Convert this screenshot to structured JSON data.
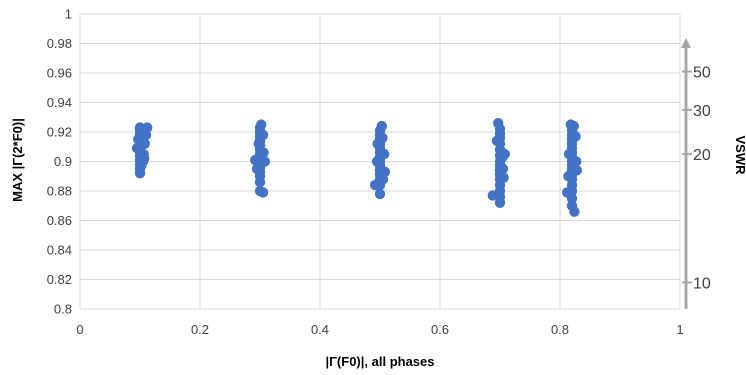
{
  "chart_data": {
    "type": "scatter",
    "title": "",
    "xlabel": "|Γ(F0)|, all phases",
    "ylabel": "MAX |Γ(2*F0)|",
    "y2label": "VSWR",
    "xlim": [
      0,
      1
    ],
    "ylim": [
      0.8,
      1
    ],
    "x_ticks": [
      "0",
      "0.2",
      "0.4",
      "0.6",
      "0.8",
      "1"
    ],
    "y_ticks": [
      "0.8",
      "0.82",
      "0.84",
      "0.86",
      "0.88",
      "0.9",
      "0.92",
      "0.94",
      "0.96",
      "0.98",
      "1"
    ],
    "vswr_ticks": [
      {
        "label": "10",
        "gamma": 0.818
      },
      {
        "label": "20",
        "gamma": 0.905
      },
      {
        "label": "30",
        "gamma": 0.935
      },
      {
        "label": "50",
        "gamma": 0.961
      }
    ],
    "grid": true,
    "legend": "none",
    "marker_color": "#4472C4",
    "axis_color": "#A6A6A6",
    "series": [
      {
        "values": [
          [
            0.1,
            0.892
          ],
          [
            0.1,
            0.895
          ],
          [
            0.1,
            0.898
          ],
          [
            0.1,
            0.901
          ],
          [
            0.1,
            0.904
          ],
          [
            0.1,
            0.907
          ],
          [
            0.1,
            0.91
          ],
          [
            0.1,
            0.913
          ],
          [
            0.1,
            0.916
          ],
          [
            0.1,
            0.919
          ],
          [
            0.1,
            0.922
          ],
          [
            0.1,
            0.923
          ],
          [
            0.105,
            0.9
          ],
          [
            0.106,
            0.905
          ],
          [
            0.108,
            0.912
          ],
          [
            0.11,
            0.918
          ],
          [
            0.112,
            0.923
          ],
          [
            0.095,
            0.909
          ],
          [
            0.097,
            0.915
          ],
          [
            0.102,
            0.897
          ],
          [
            0.103,
            0.92
          ],
          [
            0.107,
            0.902
          ],
          [
            0.3,
            0.88
          ],
          [
            0.3,
            0.886
          ],
          [
            0.3,
            0.89
          ],
          [
            0.3,
            0.893
          ],
          [
            0.3,
            0.896
          ],
          [
            0.3,
            0.899
          ],
          [
            0.3,
            0.902
          ],
          [
            0.3,
            0.905
          ],
          [
            0.3,
            0.908
          ],
          [
            0.3,
            0.911
          ],
          [
            0.3,
            0.914
          ],
          [
            0.3,
            0.917
          ],
          [
            0.3,
            0.92
          ],
          [
            0.3,
            0.923
          ],
          [
            0.302,
            0.925
          ],
          [
            0.305,
            0.879
          ],
          [
            0.308,
            0.9
          ],
          [
            0.292,
            0.901
          ],
          [
            0.295,
            0.895
          ],
          [
            0.298,
            0.912
          ],
          [
            0.305,
            0.918
          ],
          [
            0.306,
            0.906
          ],
          [
            0.5,
            0.878
          ],
          [
            0.5,
            0.884
          ],
          [
            0.5,
            0.888
          ],
          [
            0.5,
            0.891
          ],
          [
            0.5,
            0.894
          ],
          [
            0.5,
            0.897
          ],
          [
            0.5,
            0.9
          ],
          [
            0.5,
            0.903
          ],
          [
            0.5,
            0.906
          ],
          [
            0.5,
            0.909
          ],
          [
            0.5,
            0.912
          ],
          [
            0.5,
            0.915
          ],
          [
            0.5,
            0.918
          ],
          [
            0.5,
            0.921
          ],
          [
            0.503,
            0.924
          ],
          [
            0.507,
            0.905
          ],
          [
            0.508,
            0.893
          ],
          [
            0.492,
            0.884
          ],
          [
            0.495,
            0.9
          ],
          [
            0.496,
            0.912
          ],
          [
            0.504,
            0.916
          ],
          [
            0.505,
            0.888
          ],
          [
            0.7,
            0.872
          ],
          [
            0.7,
            0.876
          ],
          [
            0.7,
            0.88
          ],
          [
            0.7,
            0.884
          ],
          [
            0.7,
            0.888
          ],
          [
            0.7,
            0.891
          ],
          [
            0.7,
            0.894
          ],
          [
            0.7,
            0.897
          ],
          [
            0.7,
            0.9
          ],
          [
            0.7,
            0.904
          ],
          [
            0.7,
            0.908
          ],
          [
            0.7,
            0.912
          ],
          [
            0.7,
            0.916
          ],
          [
            0.7,
            0.919
          ],
          [
            0.7,
            0.922
          ],
          [
            0.697,
            0.926
          ],
          [
            0.688,
            0.877
          ],
          [
            0.704,
            0.903
          ],
          [
            0.706,
            0.889
          ],
          [
            0.708,
            0.905
          ],
          [
            0.695,
            0.914
          ],
          [
            0.705,
            0.895
          ],
          [
            0.82,
            0.87
          ],
          [
            0.82,
            0.875
          ],
          [
            0.82,
            0.88
          ],
          [
            0.82,
            0.884
          ],
          [
            0.82,
            0.888
          ],
          [
            0.82,
            0.891
          ],
          [
            0.82,
            0.894
          ],
          [
            0.82,
            0.897
          ],
          [
            0.82,
            0.9
          ],
          [
            0.82,
            0.903
          ],
          [
            0.82,
            0.906
          ],
          [
            0.82,
            0.909
          ],
          [
            0.82,
            0.912
          ],
          [
            0.82,
            0.915
          ],
          [
            0.82,
            0.918
          ],
          [
            0.82,
            0.921
          ],
          [
            0.818,
            0.925
          ],
          [
            0.824,
            0.866
          ],
          [
            0.828,
            0.894
          ],
          [
            0.826,
            0.917
          ],
          [
            0.812,
            0.879
          ],
          [
            0.815,
            0.905
          ],
          [
            0.823,
            0.924
          ],
          [
            0.827,
            0.9
          ],
          [
            0.814,
            0.89
          ]
        ]
      }
    ]
  }
}
